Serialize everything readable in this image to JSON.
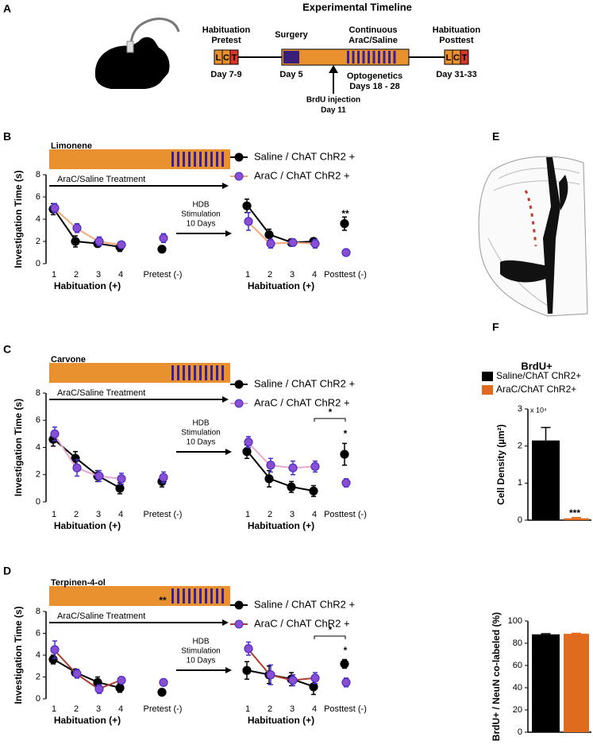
{
  "panel_labels": [
    "A",
    "B",
    "C",
    "D",
    "E",
    "F"
  ],
  "timeline": {
    "title": "Experimental Timeline",
    "pretest_label": [
      "Habituation",
      "Pretest"
    ],
    "pretest_day": "Day 7-9",
    "surgery_label": "Surgery",
    "surgery_day": "Day 5",
    "treatment_label": [
      "Continuous",
      "AraC/Saline"
    ],
    "optogenetics_label": "Optogenetics",
    "optogenetics_days": "Days 18 - 28",
    "posttest_label": [
      "Habituation",
      "Posttest"
    ],
    "posttest_day": "Day 31-33",
    "injection_label": "BrdU injection",
    "injection_day": "Day 11",
    "trial_letters": [
      "L",
      "C",
      "T"
    ]
  },
  "chart_data": [
    {
      "type": "line",
      "odor": "Limonene",
      "treatment_label": "AraC/Saline Treatment",
      "stimulation_label": [
        "HDB",
        "Stimulation",
        "10 Days"
      ],
      "ylabel": "Investigation Time (s)",
      "group_labels": [
        "Habituation (+)",
        "Habituation (+)"
      ],
      "categories": [
        "1",
        "2",
        "3",
        "4",
        "Pretest (-)",
        "1",
        "2",
        "3",
        "4",
        "Posttest (-)"
      ],
      "ylim": [
        0,
        8
      ],
      "yticks": [
        0,
        2,
        4,
        6,
        8
      ],
      "annotations": [
        "**"
      ],
      "series": [
        {
          "name": "Saline / ChAT ChR2 +",
          "color": "#000000",
          "marker_color": "#000000",
          "values": [
            4.9,
            2.0,
            1.8,
            1.5,
            1.3,
            5.2,
            2.6,
            1.9,
            2.0,
            3.6
          ],
          "errors": [
            0.5,
            0.5,
            0.3,
            0.4,
            0.3,
            0.6,
            0.5,
            0.3,
            0.3,
            0.6
          ]
        },
        {
          "name": "AraC / ChAT ChR2 +",
          "color": "#f2a878",
          "marker_color": "#8a4fd0",
          "values": [
            5.0,
            3.2,
            2.0,
            1.7,
            2.3,
            3.8,
            1.8,
            1.9,
            1.8,
            1.0
          ],
          "errors": [
            0.4,
            0.4,
            0.4,
            0.3,
            0.4,
            0.8,
            0.4,
            0.3,
            0.4,
            0.3
          ]
        }
      ]
    },
    {
      "type": "line",
      "odor": "Carvone",
      "treatment_label": "AraC/Saline Treatment",
      "stimulation_label": [
        "HDB",
        "Stimulation",
        "10 Days"
      ],
      "ylabel": "Investigation Time (s)",
      "group_labels": [
        "Habituation (+)",
        "Habituation (+)"
      ],
      "categories": [
        "1",
        "2",
        "3",
        "4",
        "Pretest (-)",
        "1",
        "2",
        "3",
        "4",
        "Posttest (-)"
      ],
      "ylim": [
        0,
        8
      ],
      "yticks": [
        0,
        2,
        4,
        6,
        8
      ],
      "annotations": [
        "*",
        "*"
      ],
      "series": [
        {
          "name": "Saline / ChAT ChR2 +",
          "color": "#000000",
          "marker_color": "#000000",
          "values": [
            4.6,
            3.2,
            1.9,
            1.0,
            1.5,
            3.7,
            1.7,
            1.1,
            0.8,
            3.5
          ],
          "errors": [
            0.5,
            0.5,
            0.4,
            0.4,
            0.4,
            0.5,
            0.6,
            0.4,
            0.4,
            0.8
          ]
        },
        {
          "name": "AraC / ChAT ChR2 +",
          "color": "#e8a8cc",
          "marker_color": "#8a4fd0",
          "values": [
            5.0,
            2.5,
            1.9,
            1.7,
            1.8,
            4.4,
            2.7,
            2.5,
            2.6,
            1.4
          ],
          "errors": [
            0.5,
            0.6,
            0.4,
            0.4,
            0.4,
            0.4,
            0.5,
            0.5,
            0.4,
            0.3
          ]
        }
      ]
    },
    {
      "type": "line",
      "odor": "Terpinen-4-ol",
      "treatment_label": "AraC/Saline Treatment",
      "stimulation_label": [
        "HDB",
        "Stimulation",
        "10 Days"
      ],
      "ylabel": "Investigation Time (s)",
      "group_labels": [
        "Habituation (+)",
        "Habituation (+)"
      ],
      "categories": [
        "1",
        "2",
        "3",
        "4",
        "Pretest (-)",
        "1",
        "2",
        "3",
        "4",
        "Posttest (-)"
      ],
      "ylim": [
        0,
        8
      ],
      "yticks": [
        0,
        2,
        4,
        6,
        8
      ],
      "annotations": [
        "**",
        "*",
        "*"
      ],
      "series": [
        {
          "name": "Saline / ChAT ChR2 +",
          "color": "#000000",
          "marker_color": "#000000",
          "values": [
            3.6,
            2.4,
            1.5,
            1.0,
            0.6,
            2.6,
            2.2,
            1.8,
            1.1,
            3.2
          ],
          "errors": [
            0.4,
            0.3,
            0.5,
            0.4,
            0.3,
            0.8,
            0.8,
            0.6,
            0.7,
            0.4
          ]
        },
        {
          "name": "AraC / ChAT ChR2 +",
          "color": "#b03a2e",
          "marker_color": "#8a4fd0",
          "values": [
            4.5,
            2.3,
            0.9,
            1.7,
            1.5,
            4.6,
            2.2,
            1.7,
            1.9,
            1.5
          ],
          "errors": [
            0.8,
            0.4,
            0.4,
            0.3,
            0.2,
            0.6,
            0.9,
            0.5,
            0.5,
            0.4
          ]
        }
      ]
    },
    {
      "type": "bar",
      "title": "BrdU+",
      "ylabel": "Cell Density (µm²)",
      "y_multiplier": "x 10⁴",
      "ylim": [
        0,
        3
      ],
      "yticks": [
        0,
        1,
        2,
        3
      ],
      "annotations": [
        "***"
      ],
      "series": [
        {
          "name": "Saline/ChAT ChR2+",
          "color": "#000000",
          "values": [
            2.15
          ],
          "errors": [
            0.35
          ]
        },
        {
          "name": "AraC/ChAT ChR2+",
          "color": "#e06a1e",
          "values": [
            0.05
          ],
          "errors": [
            0.02
          ]
        }
      ]
    },
    {
      "type": "bar",
      "ylabel": "BrdU+ / NeuN co-labeled (%)",
      "ylim": [
        0,
        100
      ],
      "yticks": [
        0,
        20,
        40,
        60,
        80,
        100
      ],
      "series": [
        {
          "color": "#000000",
          "values": [
            88
          ],
          "errors": [
            0.6
          ]
        },
        {
          "color": "#e06a1e",
          "values": [
            88.5
          ],
          "errors": [
            0.4
          ]
        }
      ]
    }
  ]
}
